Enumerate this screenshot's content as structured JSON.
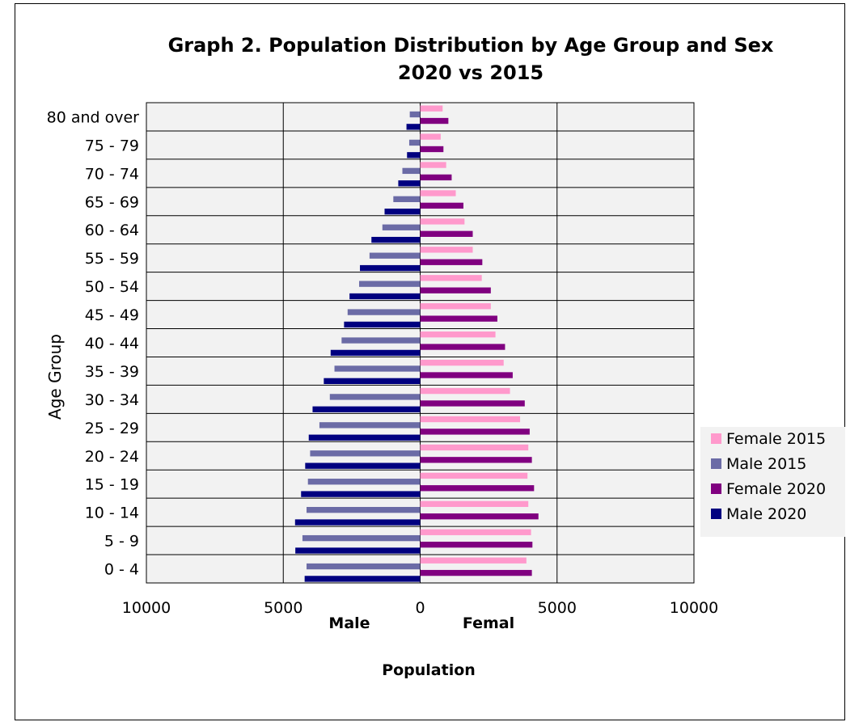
{
  "chart_data": {
    "type": "bar",
    "orientation": "horizontal",
    "title": "Graph 2. Population Distribution by Age Group and Sex",
    "subtitle": "2020 vs 2015",
    "ylabel": "Age Group",
    "xlabel": "Population",
    "side_labels": {
      "left": "Male",
      "right": "Femal"
    },
    "categories": [
      "0 - 4",
      "5 - 9",
      "10 - 14",
      "15 - 19",
      "20 - 24",
      "25 - 29",
      "30 - 34",
      "35 - 39",
      "40 - 44",
      "45 - 49",
      "50 - 54",
      "55 - 59",
      "60 - 64",
      "65 - 69",
      "70 - 74",
      "75 - 79",
      "80 and over"
    ],
    "xlim": [
      -10000,
      10000
    ],
    "x_ticks": [
      {
        "value": -10000,
        "label": "10000"
      },
      {
        "value": -5000,
        "label": "5000"
      },
      {
        "value": 0,
        "label": "0"
      },
      {
        "value": 5000,
        "label": "5000"
      },
      {
        "value": 10000,
        "label": "10000"
      }
    ],
    "grid": true,
    "legend_position": "right",
    "series": [
      {
        "name": "Female 2015",
        "color": "#ff99cc",
        "values": [
          3880,
          4050,
          3950,
          3920,
          3950,
          3650,
          3280,
          3050,
          2750,
          2580,
          2250,
          1920,
          1620,
          1300,
          950,
          750,
          820
        ]
      },
      {
        "name": "Male 2015",
        "color": "#6b6ba6",
        "values": [
          -4150,
          -4300,
          -4150,
          -4100,
          -4020,
          -3680,
          -3300,
          -3130,
          -2870,
          -2650,
          -2230,
          -1850,
          -1380,
          -980,
          -650,
          -400,
          -380
        ]
      },
      {
        "name": "Female 2020",
        "color": "#800080",
        "values": [
          4080,
          4100,
          4320,
          4160,
          4080,
          4000,
          3820,
          3380,
          3100,
          2820,
          2580,
          2270,
          1920,
          1580,
          1150,
          850,
          1030
        ]
      },
      {
        "name": "Male 2020",
        "color": "#000080",
        "values": [
          -4220,
          -4560,
          -4570,
          -4350,
          -4200,
          -4070,
          -3930,
          -3520,
          -3270,
          -2780,
          -2580,
          -2200,
          -1780,
          -1300,
          -800,
          -480,
          -500
        ]
      }
    ]
  }
}
